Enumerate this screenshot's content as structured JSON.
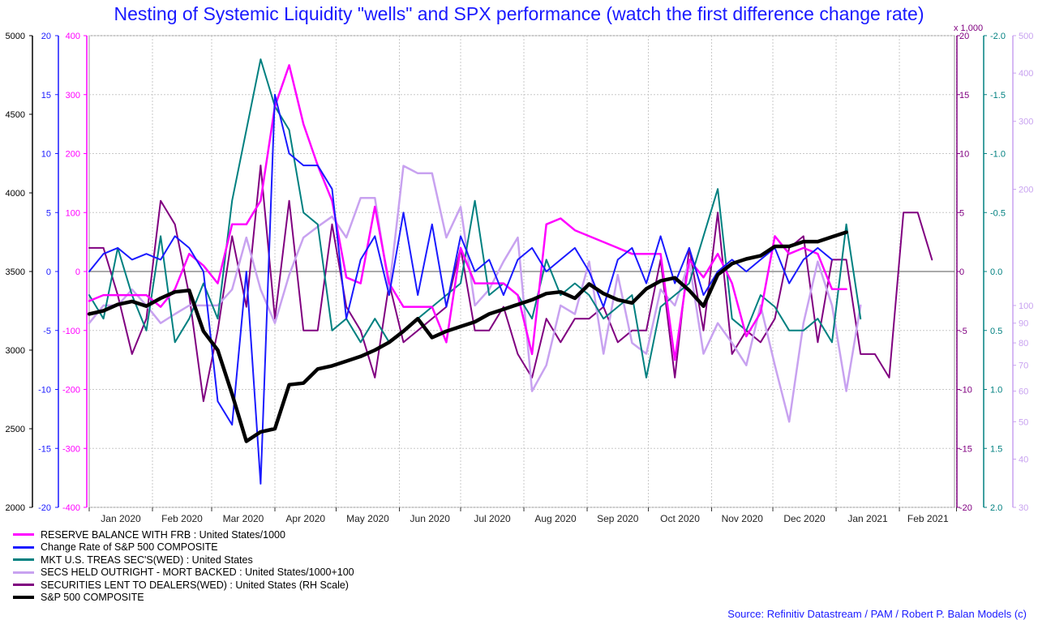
{
  "chart_data": {
    "type": "line",
    "title": "Nesting of Systemic Liquidity \"wells\" and SPX performance (watch the first difference change rate)",
    "source": "Source: Refinitiv Datastream / PAM / Robert P. Balan Models (c)",
    "multiplier_label": "x 1,000",
    "x_dates": [
      "2020-01-01",
      "2020-01-08",
      "2020-01-15",
      "2020-01-22",
      "2020-01-29",
      "2020-02-05",
      "2020-02-12",
      "2020-02-19",
      "2020-02-26",
      "2020-03-04",
      "2020-03-11",
      "2020-03-18",
      "2020-03-25",
      "2020-04-01",
      "2020-04-08",
      "2020-04-15",
      "2020-04-22",
      "2020-04-29",
      "2020-05-06",
      "2020-05-13",
      "2020-05-20",
      "2020-05-27",
      "2020-06-03",
      "2020-06-10",
      "2020-06-17",
      "2020-06-24",
      "2020-07-01",
      "2020-07-08",
      "2020-07-15",
      "2020-07-22",
      "2020-07-29",
      "2020-08-05",
      "2020-08-12",
      "2020-08-19",
      "2020-08-26",
      "2020-09-02",
      "2020-09-09",
      "2020-09-16",
      "2020-09-23",
      "2020-09-30",
      "2020-10-07",
      "2020-10-14",
      "2020-10-21",
      "2020-10-28",
      "2020-11-04",
      "2020-11-11",
      "2020-11-18",
      "2020-11-25",
      "2020-12-02",
      "2020-12-09",
      "2020-12-16",
      "2020-12-23",
      "2020-12-30",
      "2021-01-06",
      "2021-01-13",
      "2021-01-20",
      "2021-01-27",
      "2021-02-03",
      "2021-02-10",
      "2021-02-17"
    ],
    "x_tick_labels": [
      "Jan 2020",
      "Feb 2020",
      "Mar 2020",
      "Apr 2020",
      "May 2020",
      "Jun 2020",
      "Jul 2020",
      "Aug 2020",
      "Sep 2020",
      "Oct 2020",
      "Nov 2020",
      "Dec 2020",
      "Jan 2021",
      "Feb 2021"
    ],
    "axes": {
      "spx": {
        "range": [
          2000,
          5000
        ],
        "ticks": [
          "2000",
          "2500",
          "3000",
          "3500",
          "4000",
          "4500",
          "5000"
        ],
        "color": "#000000"
      },
      "change_rate": {
        "range": [
          -20,
          20
        ],
        "ticks": [
          "-20",
          "-15",
          "-10",
          "-5",
          "0",
          "5",
          "10",
          "15",
          "20"
        ],
        "color": "#1a1aff"
      },
      "reserve": {
        "range": [
          -400,
          400
        ],
        "ticks": [
          "-400",
          "-300",
          "-200",
          "-100",
          "0",
          "100",
          "200",
          "300",
          "400"
        ],
        "color": "#ff00ff"
      },
      "secs_lent": {
        "range": [
          -20,
          20
        ],
        "ticks": [
          "-20",
          "-15",
          "-10",
          "-5",
          "0",
          "5",
          "10",
          "15",
          "20"
        ],
        "color": "#800080"
      },
      "treas": {
        "range": [
          2.0,
          -2.0
        ],
        "ticks": [
          "2.0",
          "1.5",
          "1.0",
          "0.5",
          "0.0",
          "-0.5",
          "-1.0",
          "-1.5",
          "-2.0"
        ],
        "color": "#008080"
      },
      "mbs": {
        "scale": "log",
        "range": [
          30,
          500
        ],
        "ticks": [
          "30",
          "40",
          "50",
          "60",
          "70",
          "80",
          "90",
          "100",
          "200",
          "300",
          "400",
          "500"
        ],
        "color": "#c8a2f0"
      }
    },
    "grid": true,
    "series": [
      {
        "name": "RESERVE BALANCE WITH FRB : United States/1000",
        "color": "#ff00ff",
        "width": 2.5,
        "axis": "reserve",
        "values": [
          -50,
          -40,
          -40,
          -40,
          -40,
          -60,
          -30,
          30,
          10,
          -20,
          80,
          80,
          120,
          280,
          350,
          250,
          180,
          120,
          -10,
          -20,
          110,
          -20,
          -60,
          -60,
          -60,
          -120,
          40,
          -20,
          -20,
          -20,
          -40,
          -140,
          80,
          90,
          70,
          60,
          50,
          40,
          30,
          30,
          30,
          -150,
          20,
          -10,
          30,
          -20,
          -110,
          -70,
          60,
          30,
          40,
          30,
          -30,
          -30,
          null,
          null,
          null,
          null,
          null,
          null
        ]
      },
      {
        "name": "Change Rate of S&P 500 COMPOSITE",
        "color": "#1a1aff",
        "width": 2,
        "axis": "change_rate",
        "values": [
          0,
          1.5,
          2,
          1,
          1.5,
          1,
          3,
          2,
          0,
          -11,
          -13,
          0,
          -18,
          15,
          10,
          9,
          9,
          7,
          -4,
          1,
          3,
          -2,
          5,
          -2,
          4,
          -3,
          3,
          0,
          1,
          -2,
          1,
          2,
          0,
          1,
          2,
          0,
          -3,
          1,
          2,
          -1,
          3,
          -1,
          2,
          -2,
          0,
          1,
          0,
          1,
          2,
          -1,
          1,
          2,
          1,
          null,
          null,
          null,
          null,
          null,
          null,
          null
        ]
      },
      {
        "name": "MKT U.S. TREAS SEC'S(WED) : United States",
        "color": "#008080",
        "width": 2,
        "axis": "treas",
        "values": [
          0.2,
          0.4,
          -0.2,
          0.2,
          0.5,
          -0.3,
          0.6,
          0.4,
          0.1,
          0.4,
          -0.6,
          -1.2,
          -1.8,
          -1.4,
          -1.2,
          -0.5,
          -0.4,
          0.5,
          0.4,
          0.6,
          0.4,
          0.6,
          0.5,
          0.4,
          0.3,
          0.2,
          0.1,
          -0.6,
          0.2,
          0.1,
          0.2,
          0.4,
          -0.1,
          0.2,
          0.1,
          0.2,
          0.4,
          0.3,
          0.2,
          0.9,
          0.3,
          0.2,
          0.1,
          -0.3,
          -0.7,
          0.4,
          0.5,
          0.2,
          0.3,
          0.5,
          0.5,
          0.4,
          0.6,
          -0.4,
          0.4,
          null,
          null,
          null,
          null,
          null
        ]
      },
      {
        "name": "SECS HELD OUTRIGHT - MORT BACKED : United States/1000+100",
        "color": "#c8a2f0",
        "width": 2.5,
        "axis": "mbs",
        "values": [
          90,
          100,
          100,
          110,
          100,
          90,
          95,
          100,
          100,
          100,
          110,
          150,
          110,
          90,
          120,
          150,
          160,
          170,
          150,
          190,
          190,
          110,
          230,
          220,
          220,
          150,
          180,
          100,
          110,
          130,
          150,
          60,
          70,
          100,
          95,
          130,
          75,
          120,
          80,
          75,
          110,
          100,
          130,
          75,
          90,
          80,
          70,
          100,
          70,
          50,
          90,
          130,
          100,
          60,
          100,
          null,
          null,
          null,
          null,
          null
        ]
      },
      {
        "name": "SECURITIES LENT TO DEALERS(WED) : United States (RH Scale)",
        "color": "#800080",
        "width": 2,
        "axis": "secs_lent",
        "values": [
          2,
          2,
          -2,
          -7,
          -4,
          6,
          4,
          -2,
          -11,
          -5,
          3,
          -3,
          9,
          -4,
          6,
          -5,
          -5,
          4,
          -3,
          -5,
          -9,
          -1,
          -6,
          -5,
          -4,
          -3,
          2,
          -5,
          -5,
          -3,
          -7,
          -9,
          -4,
          -6,
          -4,
          -4,
          -3,
          -6,
          -5,
          -5,
          1,
          -9,
          2,
          -5,
          5,
          -7,
          -5,
          -6,
          -4,
          2,
          3,
          -6,
          1,
          1,
          -7,
          -7,
          -9,
          5,
          5,
          1
        ]
      },
      {
        "name": "S&P 500 COMPOSITE",
        "color": "#000000",
        "width": 4.5,
        "axis": "spx",
        "values": [
          3230,
          3250,
          3290,
          3310,
          3280,
          3330,
          3370,
          3380,
          3120,
          3000,
          2720,
          2420,
          2480,
          2500,
          2780,
          2790,
          2880,
          2900,
          2930,
          2960,
          3000,
          3050,
          3120,
          3200,
          3080,
          3120,
          3150,
          3180,
          3230,
          3260,
          3290,
          3320,
          3360,
          3370,
          3330,
          3420,
          3360,
          3320,
          3300,
          3390,
          3440,
          3460,
          3380,
          3280,
          3480,
          3550,
          3580,
          3600,
          3660,
          3660,
          3690,
          3690,
          3720,
          3750,
          null,
          null,
          null,
          null,
          null,
          null
        ]
      }
    ]
  }
}
